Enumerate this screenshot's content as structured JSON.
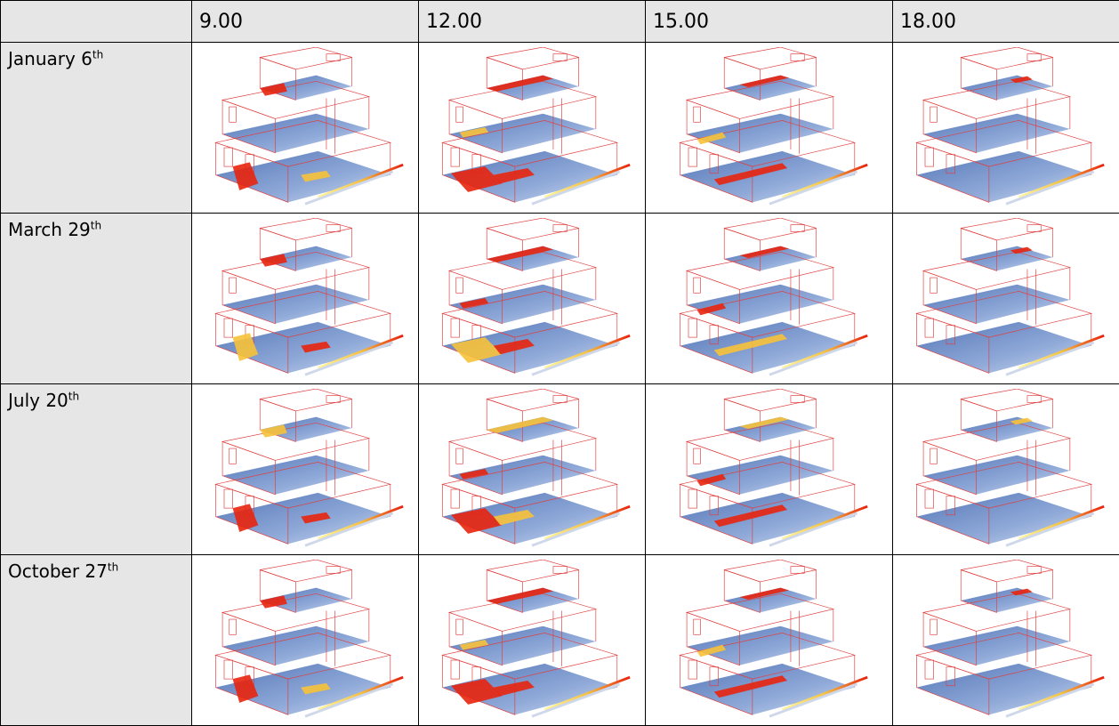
{
  "table": {
    "columns": [
      "9.00",
      "12.00",
      "15.00",
      "18.00"
    ],
    "rows": [
      {
        "date": "January 6",
        "suffix": "th"
      },
      {
        "date": "March 29",
        "suffix": "th"
      },
      {
        "date": "July 20",
        "suffix": "th"
      },
      {
        "date": "October 27",
        "suffix": "th"
      }
    ]
  }
}
